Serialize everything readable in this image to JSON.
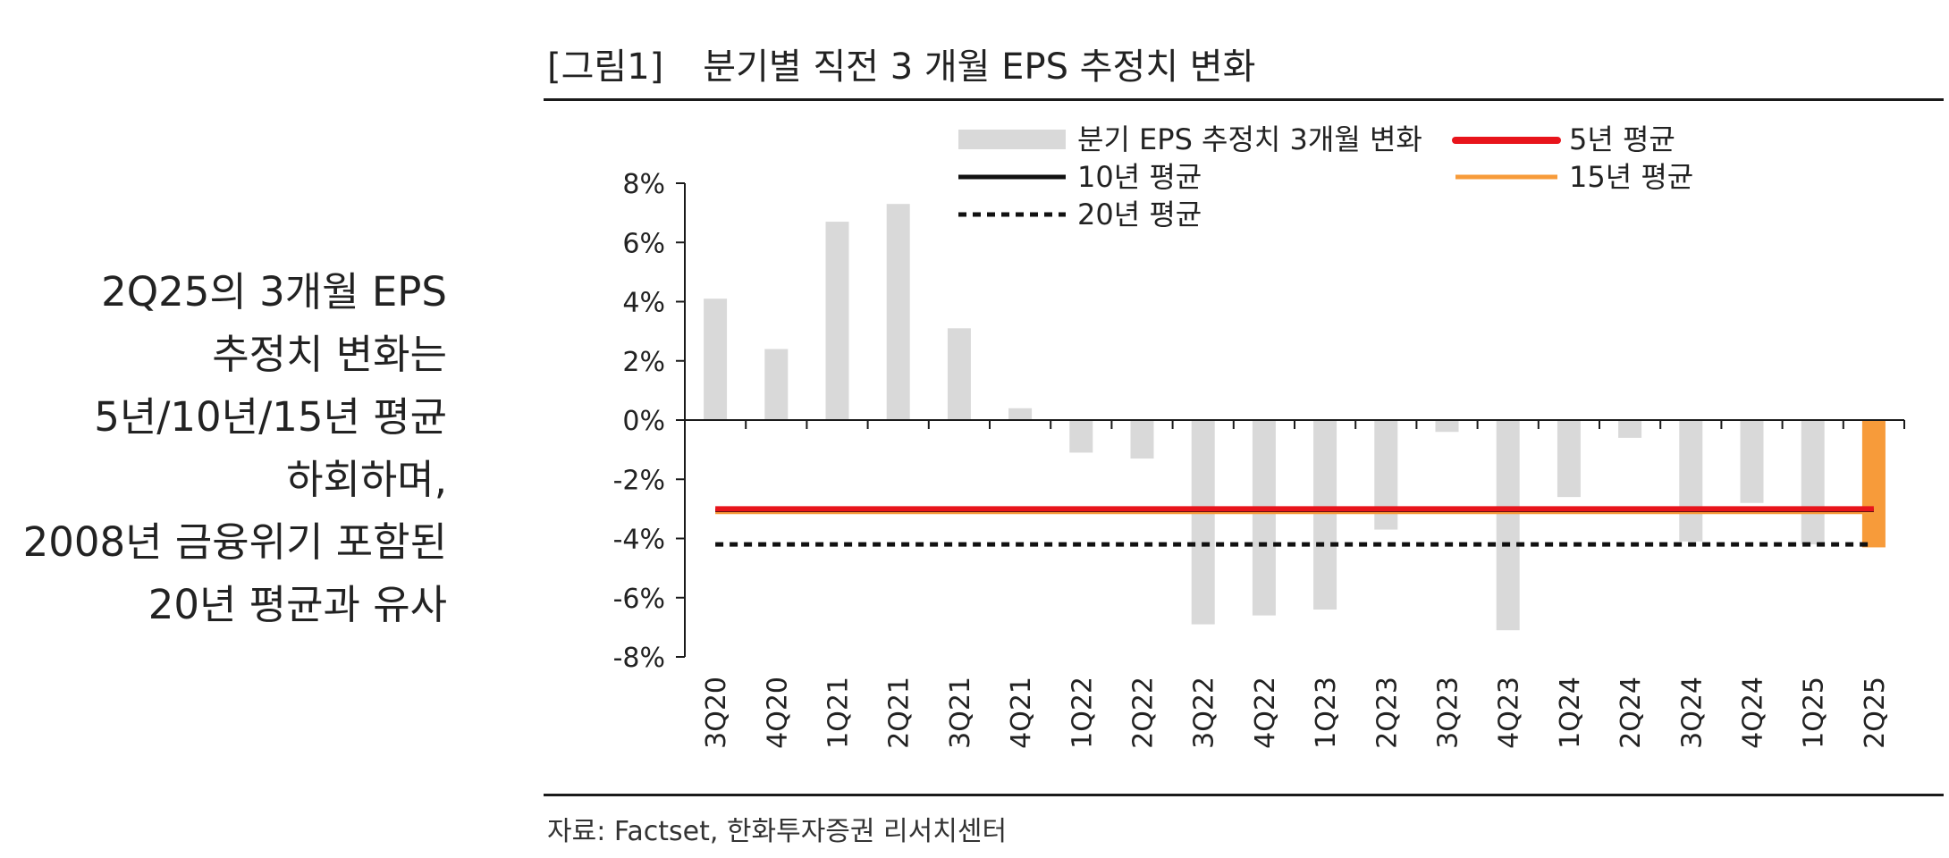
{
  "figure": {
    "number": "[그림1]",
    "title": "분기별 직전 3 개월 EPS 추정치 변화",
    "source": "자료: Factset, 한화투자증권 리서치센터"
  },
  "side_note": {
    "lines": [
      "2Q25의 3개월 EPS",
      "추정치 변화는",
      "5년/10년/15년 평균",
      "하회하며,",
      "2008년 금융위기 포함된",
      "20년 평균과 유사"
    ]
  },
  "colors": {
    "bar": "#d9d9d9",
    "highlight_bar": "#f79b3a",
    "avg5": "#e8141b",
    "avg10": "#111111",
    "avg15": "#f79b3a",
    "avg20": "#111111",
    "axis": "#1a1a1a"
  },
  "chart_data": {
    "type": "bar",
    "title": "분기별 직전 3 개월 EPS 추정치 변화",
    "xlabel": "",
    "ylabel": "",
    "ylim": [
      -8,
      8
    ],
    "yticks": [
      8,
      6,
      4,
      2,
      0,
      -2,
      -4,
      -6,
      -8
    ],
    "ytick_labels": [
      "8%",
      "6%",
      "4%",
      "2%",
      "0%",
      "-2%",
      "-4%",
      "-6%",
      "-8%"
    ],
    "categories": [
      "3Q20",
      "4Q20",
      "1Q21",
      "2Q21",
      "3Q21",
      "4Q21",
      "1Q22",
      "2Q22",
      "3Q22",
      "4Q22",
      "1Q23",
      "2Q23",
      "3Q23",
      "4Q23",
      "1Q24",
      "2Q24",
      "3Q24",
      "4Q24",
      "1Q25",
      "2Q25"
    ],
    "series": [
      {
        "name": "분기 EPS 추정치 3개월 변화",
        "style": "bar",
        "values": [
          4.1,
          2.4,
          6.7,
          7.3,
          3.1,
          0.4,
          -1.1,
          -1.3,
          -6.9,
          -6.6,
          -6.4,
          -3.7,
          -0.4,
          -7.1,
          -2.6,
          -0.6,
          -4.1,
          -2.8,
          -4.2,
          -4.3
        ],
        "highlight_last": true
      },
      {
        "name": "5년 평균",
        "style": "line",
        "value": -3.0
      },
      {
        "name": "10년 평균",
        "style": "line",
        "value": -3.05
      },
      {
        "name": "15년 평균",
        "style": "line",
        "value": -3.1
      },
      {
        "name": "20년 평균",
        "style": "dashed",
        "value": -4.2
      }
    ],
    "legend": {
      "position": "top",
      "labels": [
        "분기 EPS 추정치 3개월 변화",
        "5년 평균",
        "10년 평균",
        "15년 평균",
        "20년 평균"
      ]
    }
  }
}
